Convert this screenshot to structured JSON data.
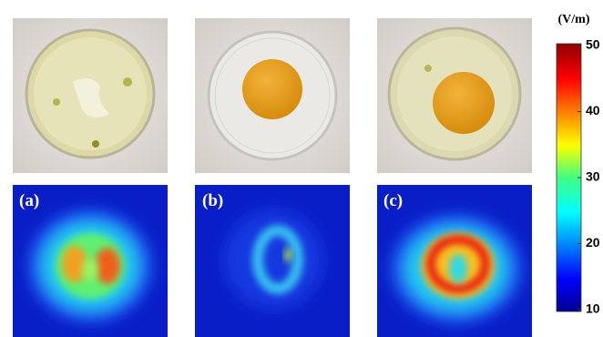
{
  "panels": [
    {
      "label": "(a)"
    },
    {
      "label": "(b)"
    },
    {
      "label": "(c)"
    }
  ],
  "colorbar": {
    "title": "(V/m)",
    "lim": [
      10,
      50
    ],
    "ticks": [
      10,
      20,
      30,
      40,
      50
    ]
  }
}
